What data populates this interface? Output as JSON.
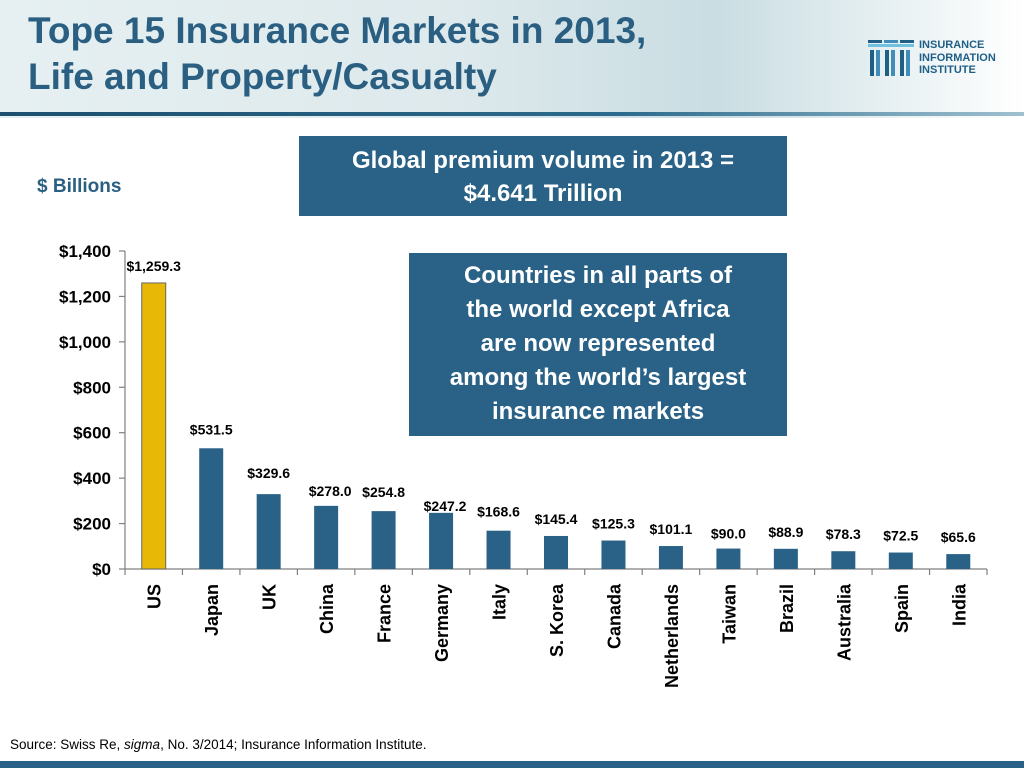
{
  "header": {
    "title_line1": "Tope 15 Insurance Markets in 2013,",
    "title_line2": "Life and Property/Casualty",
    "logo_lines": [
      "INSURANCE",
      "INFORMATION",
      "INSTITUTE"
    ]
  },
  "callouts": {
    "top_line1": "Global premium volume in 2013 =",
    "top_line2": "$4.641 Trillion",
    "mid_lines": [
      "Countries in all parts of",
      "the world except Africa",
      "are now represented",
      "among the world’s largest",
      "insurance markets"
    ]
  },
  "units_label": "$ Billions",
  "footer": {
    "source_prefix": "Source: Swiss Re, ",
    "source_italic": "sigma",
    "source_suffix": ", No. 3/2014; Insurance Information Institute."
  },
  "colors": {
    "bar": "#2a6287",
    "highlight_bar": "#e8b806",
    "title": "#2a5f82"
  },
  "chart_data": {
    "type": "bar",
    "categories": [
      "US",
      "Japan",
      "UK",
      "China",
      "France",
      "Germany",
      "Italy",
      "S. Korea",
      "Canada",
      "Netherlands",
      "Taiwan",
      "Brazil",
      "Australia",
      "Spain",
      "India"
    ],
    "values": [
      1259.3,
      531.5,
      329.6,
      278.0,
      254.8,
      247.2,
      168.6,
      145.4,
      125.3,
      101.1,
      90.0,
      88.9,
      78.3,
      72.5,
      65.6
    ],
    "data_labels": [
      "$1,259.3",
      "$531.5",
      "$329.6",
      "$278.0",
      "$254.8",
      "$247.2",
      "$168.6",
      "$145.4",
      "$125.3",
      "$101.1",
      "$90.0",
      "$88.9",
      "$78.3",
      "$72.5",
      "$65.6"
    ],
    "highlight_index": 0,
    "ylim": [
      0,
      1400
    ],
    "yticks": [
      0,
      200,
      400,
      600,
      800,
      1000,
      1200,
      1400
    ],
    "ytick_labels": [
      "$0",
      "$200",
      "$400",
      "$600",
      "$800",
      "$1,000",
      "$1,200",
      "$1,400"
    ],
    "xlabel": "",
    "ylabel": "$ Billions",
    "grid": false
  }
}
